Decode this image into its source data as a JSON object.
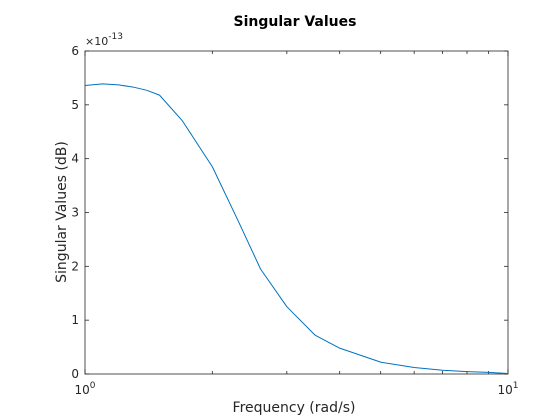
{
  "chart_data": {
    "type": "line",
    "title": "Singular Values",
    "xlabel": "Frequency (rad/s)",
    "ylabel": "Singular Values (dB)",
    "xscale": "log",
    "xlim": [
      1,
      10
    ],
    "ylim": [
      0,
      6
    ],
    "y_multiplier": "×10",
    "y_multiplier_exponent": "-13",
    "x_ticks": [
      {
        "value": 1,
        "base": "10",
        "exp": "0"
      },
      {
        "value": 10,
        "base": "10",
        "exp": "1"
      }
    ],
    "y_ticks": [
      "0",
      "1",
      "2",
      "3",
      "4",
      "5",
      "6"
    ],
    "grid": false,
    "series": [
      {
        "color": "#0072bd",
        "x": [
          1.0,
          1.1,
          1.2,
          1.3,
          1.4,
          1.5,
          1.7,
          2.0,
          2.3,
          2.6,
          3.0,
          3.5,
          4.0,
          5.0,
          6.0,
          7.0,
          8.0,
          9.0,
          10.0
        ],
        "y": [
          5.36,
          5.39,
          5.37,
          5.33,
          5.27,
          5.18,
          4.7,
          3.85,
          2.85,
          1.95,
          1.25,
          0.72,
          0.48,
          0.22,
          0.12,
          0.07,
          0.045,
          0.03,
          0.01
        ]
      }
    ]
  }
}
